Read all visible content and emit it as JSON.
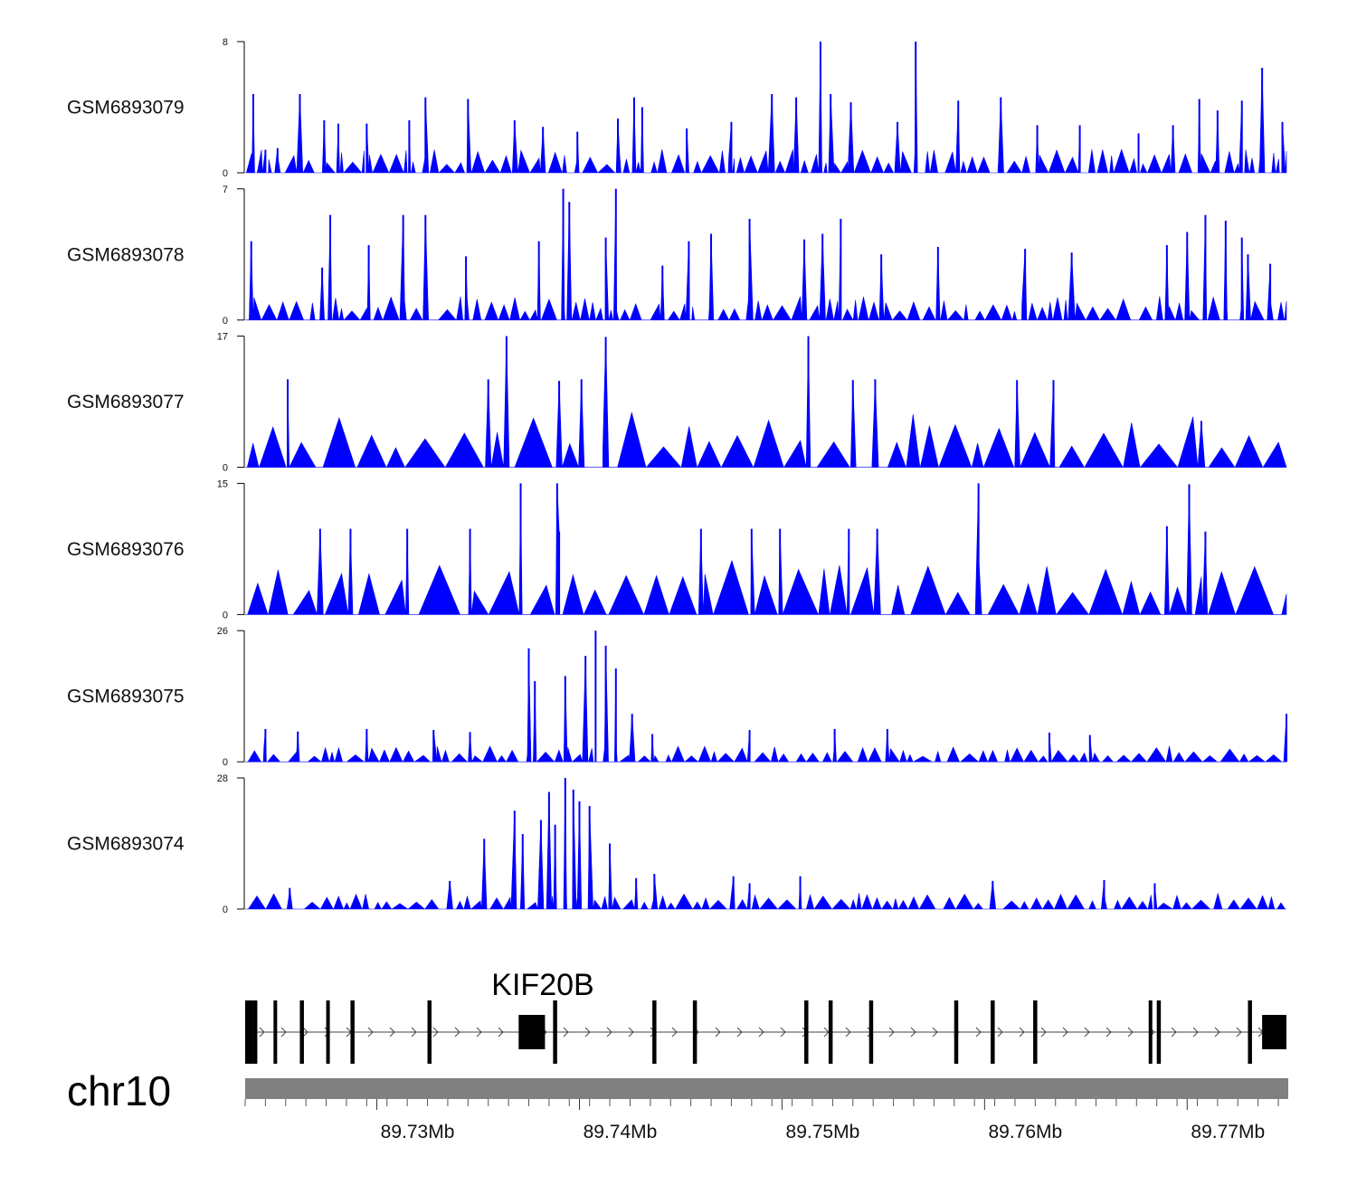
{
  "chart_data": {
    "type": "area",
    "chromosome": "chr10",
    "x_range_mb": [
      89.7235,
      89.7749
    ],
    "x_axis_ticks": [
      "89.73Mb",
      "89.74Mb",
      "89.75Mb",
      "89.76Mb",
      "89.77Mb"
    ],
    "x_axis_tick_values": [
      89.73,
      89.74,
      89.75,
      89.76,
      89.77
    ],
    "fill_color": "#0000ff",
    "tracks": [
      {
        "name": "GSM6893079",
        "ymin_label": "0",
        "ymax_label": "8",
        "ymax": 8,
        "peaks": [
          [
            89.7239,
            4.8
          ],
          [
            89.7245,
            1.4
          ],
          [
            89.7251,
            1.5
          ],
          [
            89.7262,
            4.8
          ],
          [
            89.7274,
            3.2
          ],
          [
            89.7281,
            3.0
          ],
          [
            89.7295,
            3.0
          ],
          [
            89.7316,
            3.2
          ],
          [
            89.7324,
            4.6
          ],
          [
            89.7345,
            4.5
          ],
          [
            89.7368,
            3.2
          ],
          [
            89.7382,
            2.8
          ],
          [
            89.7399,
            2.5
          ],
          [
            89.7419,
            3.3
          ],
          [
            89.7427,
            4.6
          ],
          [
            89.7431,
            4.0
          ],
          [
            89.7453,
            2.7
          ],
          [
            89.7475,
            3.1
          ],
          [
            89.7495,
            4.8
          ],
          [
            89.7507,
            4.6
          ],
          [
            89.7519,
            8.0
          ],
          [
            89.7524,
            4.8
          ],
          [
            89.7534,
            4.3
          ],
          [
            89.7557,
            3.1
          ],
          [
            89.7566,
            8.0
          ],
          [
            89.7587,
            4.4
          ],
          [
            89.7608,
            4.6
          ],
          [
            89.7626,
            2.9
          ],
          [
            89.7647,
            2.9
          ],
          [
            89.7676,
            2.4
          ],
          [
            89.7693,
            2.9
          ],
          [
            89.7706,
            4.5
          ],
          [
            89.7715,
            3.8
          ],
          [
            89.7727,
            4.4
          ],
          [
            89.7737,
            6.4
          ],
          [
            89.7747,
            3.1
          ]
        ]
      },
      {
        "name": "GSM6893078",
        "ymin_label": "0",
        "ymax_label": "7",
        "ymax": 7,
        "peaks": [
          [
            89.7238,
            4.2
          ],
          [
            89.7273,
            2.8
          ],
          [
            89.7277,
            5.6
          ],
          [
            89.7296,
            4.0
          ],
          [
            89.7313,
            5.6
          ],
          [
            89.7324,
            5.6
          ],
          [
            89.7344,
            3.4
          ],
          [
            89.738,
            4.2
          ],
          [
            89.7392,
            7.0
          ],
          [
            89.7395,
            6.3
          ],
          [
            89.7413,
            4.4
          ],
          [
            89.7418,
            7.0
          ],
          [
            89.7441,
            2.9
          ],
          [
            89.7454,
            4.2
          ],
          [
            89.7465,
            4.6
          ],
          [
            89.7484,
            5.4
          ],
          [
            89.7511,
            4.3
          ],
          [
            89.752,
            4.6
          ],
          [
            89.7529,
            5.4
          ],
          [
            89.7549,
            3.5
          ],
          [
            89.7577,
            3.9
          ],
          [
            89.762,
            3.8
          ],
          [
            89.7643,
            3.6
          ],
          [
            89.769,
            4.0
          ],
          [
            89.77,
            4.7
          ],
          [
            89.7709,
            5.6
          ],
          [
            89.7719,
            5.3
          ],
          [
            89.7727,
            4.4
          ],
          [
            89.773,
            3.5
          ],
          [
            89.7741,
            3.0
          ]
        ]
      },
      {
        "name": "GSM6893077",
        "ymin_label": "0",
        "ymax_label": "17",
        "ymax": 17,
        "peaks": [
          [
            89.7256,
            11.4
          ],
          [
            89.7355,
            11.4
          ],
          [
            89.7364,
            17.0
          ],
          [
            89.739,
            11.2
          ],
          [
            89.7401,
            11.4
          ],
          [
            89.7413,
            16.9
          ],
          [
            89.7513,
            17.0
          ],
          [
            89.7535,
            11.3
          ],
          [
            89.7546,
            11.4
          ],
          [
            89.7616,
            11.3
          ],
          [
            89.7634,
            11.3
          ],
          [
            89.7707,
            6.0
          ]
        ]
      },
      {
        "name": "GSM6893076",
        "ymin_label": "0",
        "ymax_label": "15",
        "ymax": 15,
        "peaks": [
          [
            89.7272,
            9.8
          ],
          [
            89.7287,
            9.8
          ],
          [
            89.7315,
            9.8
          ],
          [
            89.7346,
            9.8
          ],
          [
            89.7371,
            15.0
          ],
          [
            89.7389,
            15.0
          ],
          [
            89.739,
            9.5
          ],
          [
            89.746,
            9.8
          ],
          [
            89.7485,
            9.8
          ],
          [
            89.7499,
            9.8
          ],
          [
            89.7533,
            9.8
          ],
          [
            89.7547,
            9.8
          ],
          [
            89.7597,
            15.0
          ],
          [
            89.769,
            10.1
          ],
          [
            89.7701,
            14.9
          ],
          [
            89.7709,
            9.5
          ]
        ]
      },
      {
        "name": "GSM6893075",
        "ymin_label": "0",
        "ymax_label": "26",
        "ymax": 26,
        "peaks": [
          [
            89.7245,
            6.5
          ],
          [
            89.7261,
            6.0
          ],
          [
            89.7295,
            6.5
          ],
          [
            89.7328,
            6.3
          ],
          [
            89.7346,
            5.9
          ],
          [
            89.7375,
            22.5
          ],
          [
            89.7378,
            16.0
          ],
          [
            89.7393,
            17.0
          ],
          [
            89.7403,
            21.0
          ],
          [
            89.7408,
            26.0
          ],
          [
            89.7413,
            23.0
          ],
          [
            89.7418,
            18.5
          ],
          [
            89.7426,
            9.5
          ],
          [
            89.7436,
            5.5
          ],
          [
            89.7484,
            6.3
          ],
          [
            89.7526,
            6.5
          ],
          [
            89.7552,
            6.5
          ],
          [
            89.7632,
            5.8
          ],
          [
            89.7652,
            5.3
          ],
          [
            89.7749,
            9.5
          ]
        ]
      },
      {
        "name": "GSM6893074",
        "ymin_label": "0",
        "ymax_label": "28",
        "ymax": 28,
        "peaks": [
          [
            89.7257,
            4.5
          ],
          [
            89.7336,
            6.0
          ],
          [
            89.7353,
            15.0
          ],
          [
            89.7368,
            21.0
          ],
          [
            89.7372,
            16.0
          ],
          [
            89.7381,
            19.0
          ],
          [
            89.7385,
            25.0
          ],
          [
            89.7388,
            18.0
          ],
          [
            89.7393,
            28.0
          ],
          [
            89.7397,
            25.5
          ],
          [
            89.74,
            23.0
          ],
          [
            89.7405,
            22.0
          ],
          [
            89.7415,
            14.0
          ],
          [
            89.7428,
            6.6
          ],
          [
            89.7437,
            7.5
          ],
          [
            89.7476,
            7.0
          ],
          [
            89.7484,
            5.5
          ],
          [
            89.7509,
            7.0
          ],
          [
            89.7604,
            6.0
          ],
          [
            89.7659,
            6.2
          ],
          [
            89.7684,
            5.5
          ]
        ]
      }
    ],
    "gene": {
      "name": "KIF20B",
      "strand": "+",
      "start_mb": 89.7235,
      "end_mb": 89.7749,
      "exons": [
        [
          89.7235,
          89.7239
        ],
        [
          89.7239,
          89.7241
        ],
        [
          89.7249,
          89.725
        ],
        [
          89.7262,
          89.7264
        ],
        [
          89.7275,
          89.7276
        ],
        [
          89.7287,
          89.7289
        ],
        [
          89.7325,
          89.7327
        ],
        [
          89.737,
          89.7383
        ],
        [
          89.7387,
          89.7389
        ],
        [
          89.7436,
          89.7438
        ],
        [
          89.7456,
          89.7458
        ],
        [
          89.7511,
          89.7513
        ],
        [
          89.7523,
          89.7525
        ],
        [
          89.7543,
          89.7545
        ],
        [
          89.7585,
          89.7587
        ],
        [
          89.7603,
          89.7605
        ],
        [
          89.7624,
          89.7626
        ],
        [
          89.7681,
          89.7682
        ],
        [
          89.7685,
          89.7687
        ],
        [
          89.773,
          89.7732
        ],
        [
          89.7737,
          89.7749
        ]
      ]
    }
  }
}
